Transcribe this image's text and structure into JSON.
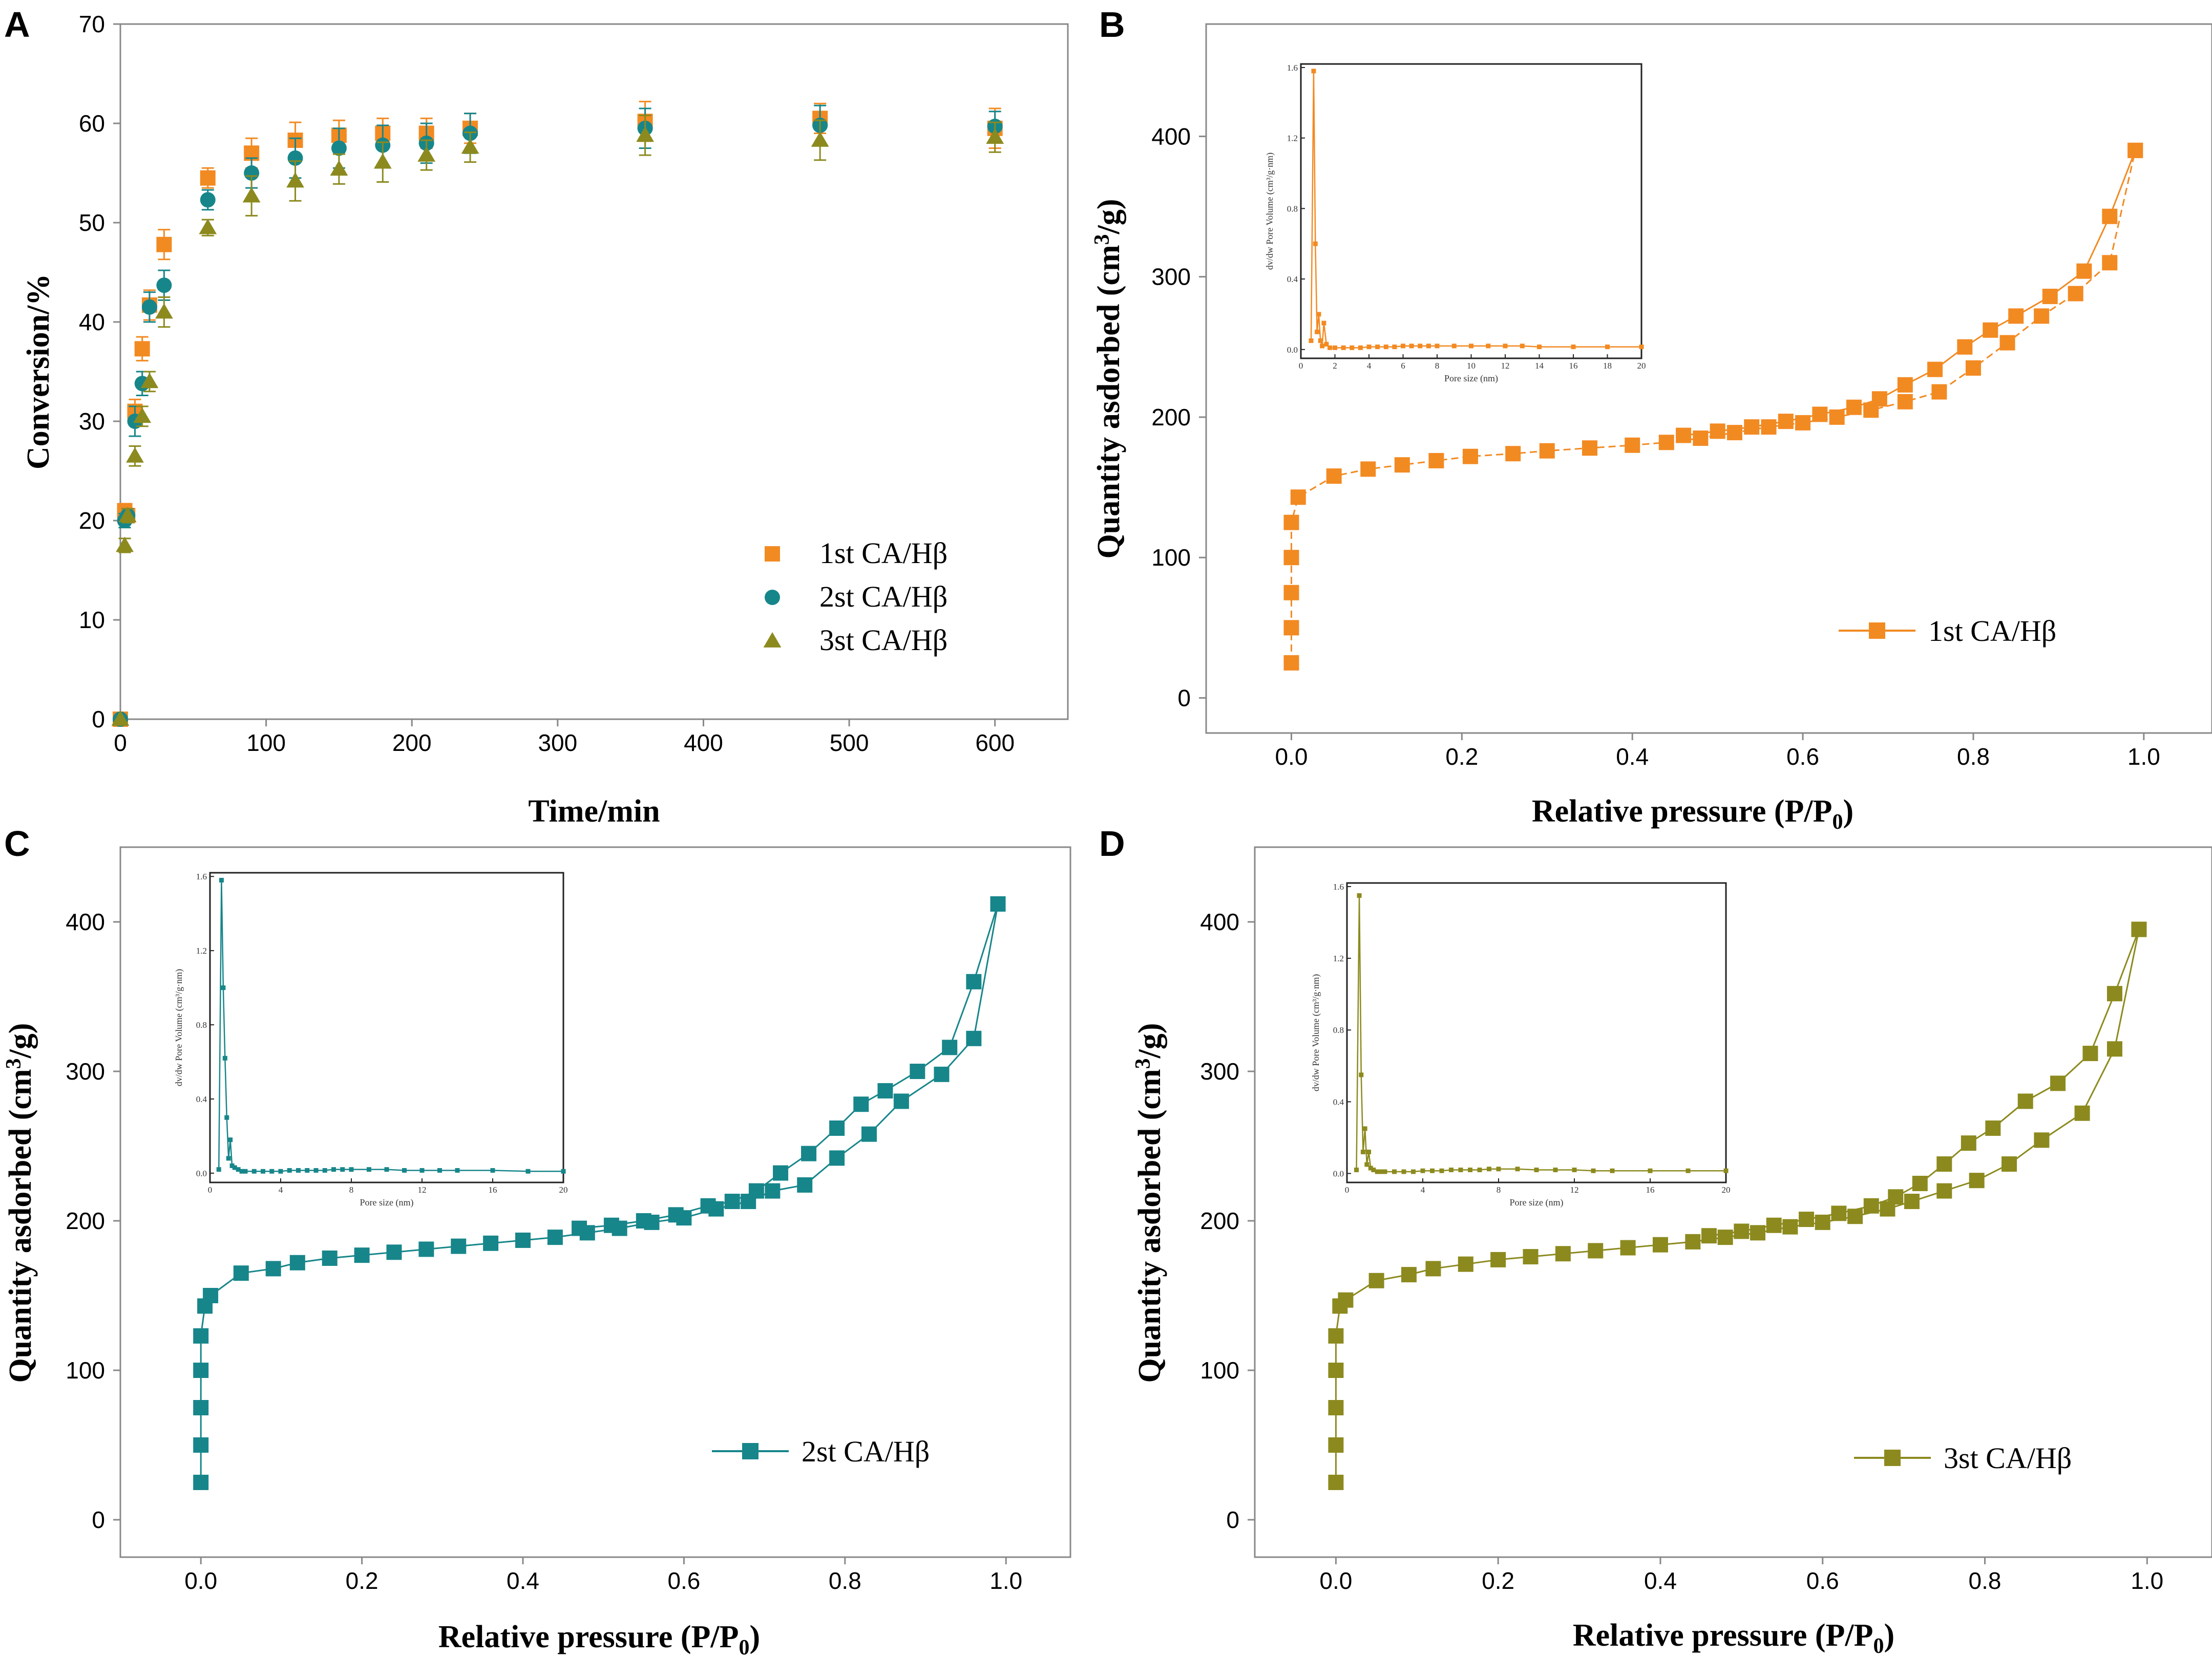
{
  "chart_data": [
    {
      "panel": "A",
      "type": "scatter",
      "xlabel": "Time/min",
      "ylabel": "Conversion/%",
      "xlim": [
        0,
        650
      ],
      "ylim": [
        0,
        70
      ],
      "xticks": [
        0,
        100,
        200,
        300,
        400,
        500,
        600
      ],
      "yticks": [
        0,
        10,
        20,
        30,
        40,
        50,
        60,
        70
      ],
      "x": [
        0,
        3,
        5,
        10,
        15,
        20,
        30,
        60,
        90,
        120,
        150,
        180,
        210,
        240,
        360,
        480,
        600
      ],
      "series": [
        {
          "name": "1st CA/Hβ",
          "color": "#F28A22",
          "marker": "square",
          "values": [
            0,
            21,
            20.5,
            31,
            37.3,
            41.7,
            47.8,
            54.5,
            57,
            58.3,
            58.8,
            59,
            59,
            59.5,
            60.2,
            60.5,
            59.5
          ],
          "errors": [
            0,
            0.7,
            0.7,
            1.2,
            1.2,
            1.5,
            1.5,
            1.0,
            1.5,
            1.8,
            1.5,
            1.5,
            1.5,
            1.5,
            2.0,
            1.5,
            2.0
          ]
        },
        {
          "name": "2st CA/Hβ",
          "color": "#17868A",
          "marker": "circle",
          "values": [
            0,
            20,
            20.5,
            30,
            33.8,
            41.5,
            43.7,
            52.3,
            55,
            56.5,
            57.5,
            57.8,
            58,
            59,
            59.5,
            59.8,
            59.7
          ],
          "errors": [
            0,
            0.7,
            0.7,
            1.5,
            1.2,
            1.5,
            1.5,
            1.0,
            1.5,
            2.0,
            2.0,
            2.0,
            2.0,
            2.0,
            2.0,
            2.0,
            1.5
          ]
        },
        {
          "name": "3st CA/Hβ",
          "color": "#8C8A1E",
          "marker": "triangle",
          "values": [
            0,
            17.5,
            20.5,
            26.5,
            30.5,
            34,
            41,
            49.5,
            52.7,
            54.2,
            55.4,
            56.1,
            56.8,
            57.6,
            58.8,
            58.3,
            58.6
          ],
          "errors": [
            0,
            0.7,
            0.7,
            1.0,
            1.0,
            1.0,
            1.5,
            0.8,
            2.0,
            2.0,
            1.5,
            2.0,
            1.5,
            1.5,
            2.0,
            2.0,
            1.5
          ]
        }
      ]
    },
    {
      "panel": "B",
      "type": "line",
      "xlabel": "Relative pressure (P/P",
      "xlabel_sub": "0",
      "xlabel_end": ")",
      "ylabel": "Quantity asdorbed (cm",
      "ylabel_sup": "3",
      "ylabel_end": "/g)",
      "xlim": [
        -0.1,
        1.08
      ],
      "ylim": [
        -25,
        480
      ],
      "xticks": [
        0.0,
        0.2,
        0.4,
        0.6,
        0.8,
        1.0
      ],
      "yticks": [
        0,
        100,
        200,
        300,
        400
      ],
      "series": [
        {
          "name": "1st CA/Hβ",
          "color": "#F28A22",
          "adsorption_x": [
            0,
            0,
            0,
            0,
            0,
            0.008,
            0.05,
            0.09,
            0.13,
            0.17,
            0.21,
            0.26,
            0.3,
            0.35,
            0.4,
            0.44,
            0.48,
            0.52,
            0.56,
            0.6,
            0.64,
            0.68,
            0.72,
            0.76,
            0.8,
            0.84,
            0.88,
            0.92,
            0.96,
            0.99
          ],
          "adsorption_y": [
            25,
            50,
            75,
            100,
            125,
            143,
            158,
            163,
            166,
            169,
            172,
            174,
            176,
            178,
            180,
            182,
            185,
            189,
            193,
            196,
            200,
            205,
            211,
            218,
            235,
            253,
            272,
            288,
            310,
            390
          ],
          "desorption_x": [
            0.99,
            0.96,
            0.93,
            0.89,
            0.85,
            0.82,
            0.79,
            0.755,
            0.72,
            0.69,
            0.66,
            0.62,
            0.58,
            0.54,
            0.5,
            0.46
          ],
          "desorption_y": [
            390,
            343,
            304,
            286,
            272,
            262,
            250,
            234,
            223,
            213,
            207,
            202,
            197,
            193,
            190,
            187
          ],
          "inset": {
            "xlabel": "Pore size (nm)",
            "ylabel": "dv/dw Pore Volume (cm³/g·nm)",
            "xlim": [
              0,
              20
            ],
            "ylim": [
              -0.05,
              1.62
            ],
            "xticks": [
              0,
              2,
              4,
              6,
              8,
              10,
              12,
              14,
              16,
              18,
              20
            ],
            "yticks": [
              0.0,
              0.4,
              0.8,
              1.2,
              1.6
            ],
            "ytick_labels": [
              "0.0",
              "0.4",
              "0.8",
              "1.2",
              "1.6"
            ],
            "x": [
              0.6,
              0.75,
              0.85,
              0.95,
              1.05,
              1.15,
              1.25,
              1.35,
              1.5,
              1.7,
              2,
              2.5,
              3,
              3.5,
              4,
              4.5,
              5,
              5.5,
              6,
              6.5,
              7,
              7.5,
              8,
              9,
              10,
              11,
              12,
              13,
              14,
              16,
              18,
              20
            ],
            "y": [
              0.05,
              1.58,
              0.6,
              0.1,
              0.2,
              0.05,
              0.02,
              0.15,
              0.03,
              0.01,
              0.01,
              0.01,
              0.01,
              0.01,
              0.015,
              0.015,
              0.015,
              0.015,
              0.02,
              0.02,
              0.02,
              0.02,
              0.02,
              0.02,
              0.02,
              0.02,
              0.02,
              0.02,
              0.015,
              0.015,
              0.015,
              0.015
            ]
          }
        }
      ]
    },
    {
      "panel": "C",
      "type": "line",
      "xlabel": "Relative pressure (P/P",
      "xlabel_sub": "0",
      "xlabel_end": ")",
      "ylabel": "Quantity asdorbed (cm",
      "ylabel_sup": "3",
      "ylabel_end": "/g)",
      "xlim": [
        -0.1,
        1.08
      ],
      "ylim": [
        -25,
        450
      ],
      "xticks": [
        0.0,
        0.2,
        0.4,
        0.6,
        0.8,
        1.0
      ],
      "yticks": [
        0,
        100,
        200,
        300,
        400
      ],
      "series": [
        {
          "name": "2st CA/Hβ",
          "color": "#17868A",
          "adsorption_x": [
            0,
            0,
            0,
            0,
            0,
            0.005,
            0.012,
            0.05,
            0.09,
            0.12,
            0.16,
            0.2,
            0.24,
            0.28,
            0.32,
            0.36,
            0.4,
            0.44,
            0.48,
            0.52,
            0.56,
            0.6,
            0.64,
            0.68,
            0.71,
            0.75,
            0.79,
            0.83,
            0.87,
            0.92,
            0.96,
            0.99
          ],
          "adsorption_y": [
            25,
            50,
            75,
            100,
            123,
            143,
            150,
            165,
            168,
            172,
            175,
            177,
            179,
            181,
            183,
            185,
            187,
            189,
            192,
            195,
            199,
            202,
            208,
            213,
            220,
            224,
            242,
            258,
            280,
            298,
            322,
            412
          ],
          "desorption_x": [
            0.99,
            0.96,
            0.93,
            0.89,
            0.85,
            0.82,
            0.79,
            0.755,
            0.72,
            0.69,
            0.66,
            0.63,
            0.59,
            0.55,
            0.51,
            0.47
          ],
          "desorption_y": [
            412,
            360,
            316,
            300,
            287,
            278,
            262,
            245,
            232,
            220,
            213,
            210,
            204,
            200,
            197,
            195
          ],
          "inset": {
            "xlabel": "Pore size (nm)",
            "ylabel": "dv/dw Pore Volume (cm³/g·nm)",
            "xlim": [
              0,
              20
            ],
            "ylim": [
              -0.05,
              1.62
            ],
            "xticks": [
              0,
              4,
              8,
              12,
              16,
              20
            ],
            "yticks": [
              0.0,
              0.4,
              0.8,
              1.2,
              1.6
            ],
            "ytick_labels": [
              "0.0",
              "0.4",
              "0.8",
              "1.2",
              "1.6"
            ],
            "x": [
              0.5,
              0.65,
              0.75,
              0.85,
              0.95,
              1.05,
              1.15,
              1.25,
              1.4,
              1.6,
              1.8,
              2,
              2.5,
              3,
              3.5,
              4,
              4.5,
              5,
              5.5,
              6,
              6.5,
              7,
              7.5,
              8,
              9,
              10,
              11,
              12,
              13,
              14,
              16,
              18,
              20
            ],
            "y": [
              0.02,
              1.58,
              1.0,
              0.62,
              0.3,
              0.08,
              0.18,
              0.04,
              0.03,
              0.02,
              0.01,
              0.01,
              0.01,
              0.01,
              0.01,
              0.01,
              0.015,
              0.015,
              0.015,
              0.015,
              0.015,
              0.02,
              0.02,
              0.02,
              0.02,
              0.02,
              0.015,
              0.015,
              0.015,
              0.015,
              0.015,
              0.01,
              0.01
            ]
          }
        }
      ]
    },
    {
      "panel": "D",
      "type": "line",
      "xlabel": "Relative pressure (P/P",
      "xlabel_sub": "0",
      "xlabel_end": ")",
      "ylabel": "Quantity asdorbed (cm",
      "ylabel_sup": "3",
      "ylabel_end": "/g)",
      "xlim": [
        -0.1,
        1.08
      ],
      "ylim": [
        -25,
        450
      ],
      "xticks": [
        0.0,
        0.2,
        0.4,
        0.6,
        0.8,
        1.0
      ],
      "yticks": [
        0,
        100,
        200,
        300,
        400
      ],
      "series": [
        {
          "name": "3st CA/Hβ",
          "color": "#8C8A1E",
          "adsorption_x": [
            0,
            0,
            0,
            0,
            0,
            0.005,
            0.012,
            0.05,
            0.09,
            0.12,
            0.16,
            0.2,
            0.24,
            0.28,
            0.32,
            0.36,
            0.4,
            0.44,
            0.48,
            0.52,
            0.56,
            0.6,
            0.64,
            0.68,
            0.71,
            0.75,
            0.79,
            0.83,
            0.87,
            0.92,
            0.96,
            0.99
          ],
          "adsorption_y": [
            25,
            50,
            75,
            100,
            123,
            143,
            147,
            160,
            164,
            168,
            171,
            174,
            176,
            178,
            180,
            182,
            184,
            186,
            189,
            192,
            196,
            199,
            203,
            208,
            213,
            220,
            227,
            238,
            254,
            272,
            315,
            395
          ],
          "desorption_x": [
            0.99,
            0.96,
            0.93,
            0.89,
            0.85,
            0.81,
            0.78,
            0.75,
            0.72,
            0.69,
            0.66,
            0.62,
            0.58,
            0.54,
            0.5,
            0.46
          ],
          "desorption_y": [
            395,
            352,
            312,
            292,
            280,
            262,
            252,
            238,
            225,
            216,
            210,
            205,
            201,
            197,
            193,
            190
          ],
          "inset": {
            "xlabel": "Pore size (nm)",
            "ylabel": "dv/dw Pore Volume (cm³/g·nm)",
            "xlim": [
              0,
              20
            ],
            "ylim": [
              -0.05,
              1.62
            ],
            "xticks": [
              0,
              4,
              8,
              12,
              16,
              20
            ],
            "yticks": [
              0.0,
              0.4,
              0.8,
              1.2,
              1.6
            ],
            "ytick_labels": [
              "0.0",
              "0.4",
              "0.8",
              "1.2",
              "1.6"
            ],
            "x": [
              0.5,
              0.65,
              0.75,
              0.85,
              0.95,
              1.05,
              1.15,
              1.25,
              1.4,
              1.6,
              1.8,
              2,
              2.5,
              3,
              3.5,
              4,
              4.5,
              5,
              5.5,
              6,
              6.5,
              7,
              7.5,
              8,
              9,
              10,
              11,
              12,
              13,
              14,
              16,
              18,
              20
            ],
            "y": [
              0.02,
              1.55,
              0.55,
              0.12,
              0.25,
              0.05,
              0.12,
              0.03,
              0.02,
              0.01,
              0.01,
              0.01,
              0.01,
              0.01,
              0.01,
              0.015,
              0.015,
              0.015,
              0.02,
              0.02,
              0.02,
              0.02,
              0.025,
              0.025,
              0.025,
              0.02,
              0.02,
              0.02,
              0.015,
              0.015,
              0.015,
              0.015,
              0.015
            ]
          }
        }
      ]
    }
  ]
}
